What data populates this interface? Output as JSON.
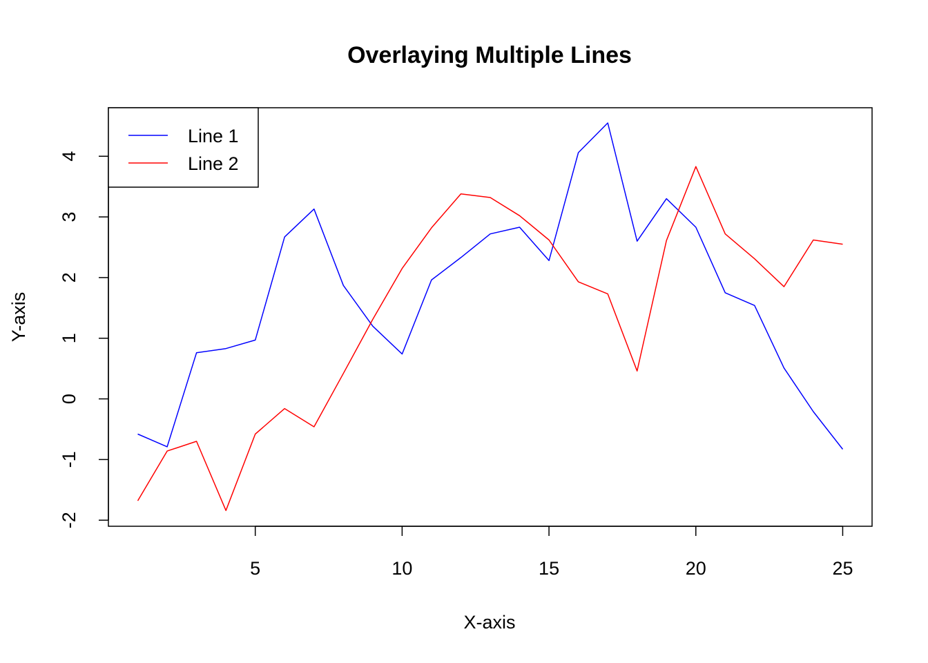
{
  "chart_data": {
    "type": "line",
    "title": "Overlaying Multiple Lines",
    "xlabel": "X-axis",
    "ylabel": "Y-axis",
    "xlim": [
      0,
      26
    ],
    "ylim": [
      -2.1,
      4.8
    ],
    "xticks": [
      5,
      10,
      15,
      20,
      25
    ],
    "yticks": [
      -2,
      -1,
      0,
      1,
      2,
      3,
      4
    ],
    "grid": false,
    "legend": "top-left",
    "x": [
      1,
      2,
      3,
      4,
      5,
      6,
      7,
      8,
      9,
      10,
      11,
      12,
      13,
      14,
      15,
      16,
      17,
      18,
      19,
      20,
      21,
      22,
      23,
      24,
      25
    ],
    "series": [
      {
        "name": "Line 1",
        "color": "#0000ff",
        "values": [
          -0.58,
          -0.79,
          0.76,
          0.83,
          0.97,
          2.67,
          3.13,
          1.87,
          1.2,
          0.74,
          1.96,
          2.33,
          2.72,
          2.83,
          2.28,
          4.06,
          4.55,
          2.6,
          3.3,
          2.83,
          1.75,
          1.54,
          0.51,
          -0.21,
          -0.83
        ]
      },
      {
        "name": "Line 2",
        "color": "#ff0000",
        "values": [
          -1.68,
          -0.86,
          -0.7,
          -1.84,
          -0.58,
          -0.16,
          -0.46,
          0.42,
          1.31,
          2.15,
          2.82,
          3.38,
          3.32,
          3.02,
          2.62,
          1.93,
          1.73,
          0.46,
          2.61,
          3.83,
          2.72,
          2.31,
          1.85,
          2.62,
          2.55
        ]
      }
    ]
  }
}
